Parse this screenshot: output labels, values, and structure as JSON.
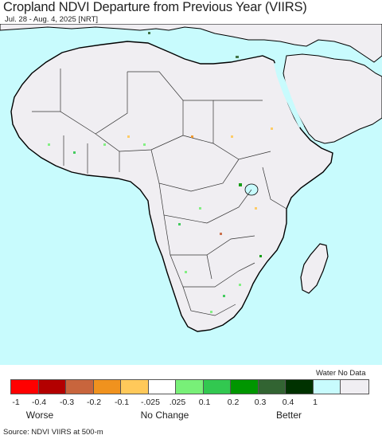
{
  "title": "Cropland NDVI Departure from Previous Year (VIIRS)",
  "subtitle": "Jul. 28 - Aug. 4, 2025 [NRT]",
  "map": {
    "region": "Africa",
    "colors": {
      "ocean": "#c8fbfd",
      "land": "#f0eef2",
      "border": "#333333",
      "coast": "#000000"
    }
  },
  "legend": {
    "water_label": "Water No Data",
    "swatches": [
      {
        "color": "#ff0000"
      },
      {
        "color": "#b30000"
      },
      {
        "color": "#c8653d"
      },
      {
        "color": "#f0921e"
      },
      {
        "color": "#ffc95a"
      },
      {
        "color": "#ffffff"
      },
      {
        "color": "#78f078"
      },
      {
        "color": "#32c850"
      },
      {
        "color": "#009600"
      },
      {
        "color": "#326432"
      },
      {
        "color": "#003200"
      },
      {
        "color": "#c8fbfd"
      },
      {
        "color": "#f0eef2"
      }
    ],
    "ticks": [
      "-1",
      "-0.4",
      "-0.3",
      "-0.2",
      "-0.1",
      "-.025",
      ".025",
      "0.1",
      "0.2",
      "0.3",
      "0.4",
      "1"
    ],
    "categories": [
      "Worse",
      "No Change",
      "Better"
    ]
  },
  "source": "Source: NDVI VIIRS at 500-m"
}
